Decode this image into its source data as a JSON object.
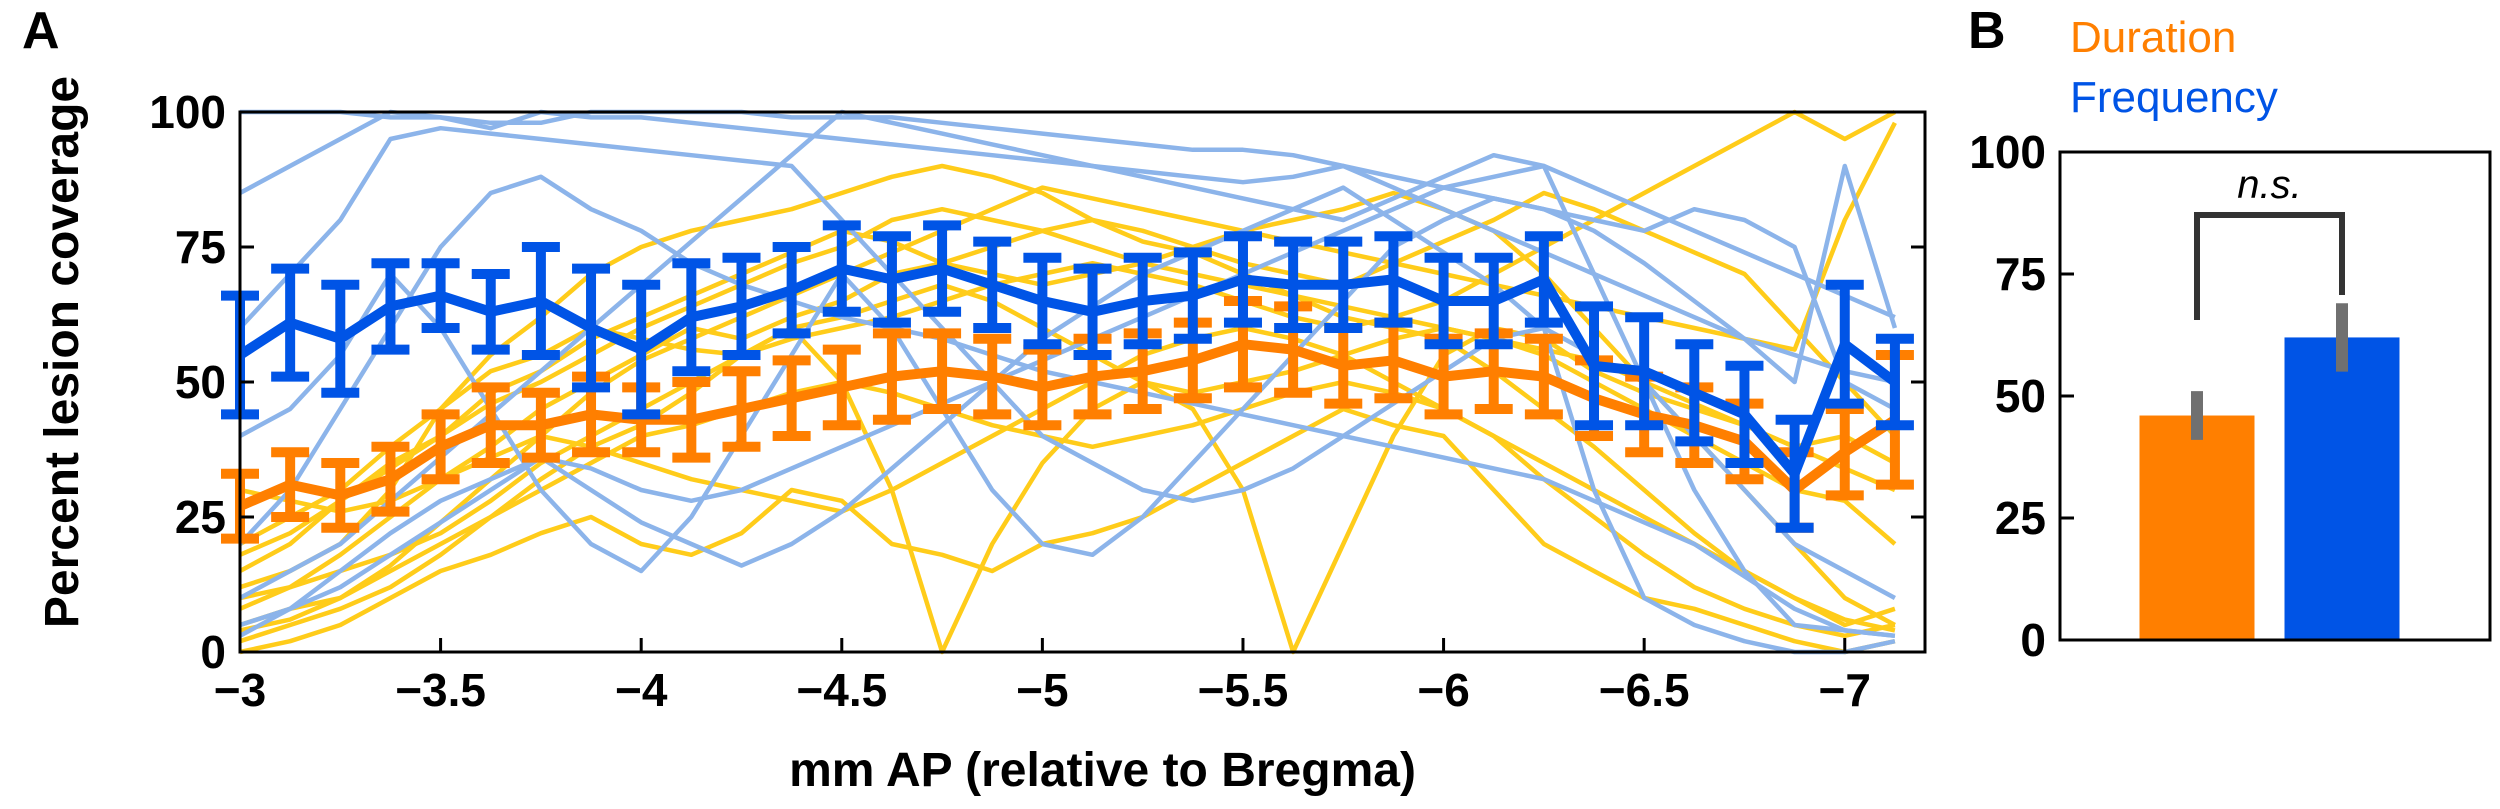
{
  "panels": {
    "a_label": "A",
    "b_label": "B"
  },
  "colors": {
    "duration_mean": "#ff7f00",
    "frequency_mean": "#0054e6",
    "duration_individual": "#ffcc1a",
    "frequency_individual": "#8cb4ea",
    "sem_bar_b": "#707070"
  },
  "chart_data": [
    {
      "type": "line",
      "panel": "A",
      "xlabel": "mm AP (relative to Bregma)",
      "ylabel": "Percent lesion coverage",
      "xlim": [
        -3,
        -7.2
      ],
      "ylim": [
        0,
        100
      ],
      "xticks": [
        -3,
        -3.5,
        -4,
        -4.5,
        -5,
        -5.5,
        -6,
        -6.5,
        -7
      ],
      "xtick_labels": [
        "−3",
        "−3.5",
        "−4",
        "−4.5",
        "−5",
        "−5.5",
        "−6",
        "−6.5",
        "−7"
      ],
      "yticks": [
        0,
        25,
        50,
        75,
        100
      ],
      "ytick_labels": [
        "0",
        "25",
        "50",
        "75",
        "100"
      ],
      "x": [
        -3.0,
        -3.125,
        -3.25,
        -3.375,
        -3.5,
        -3.625,
        -3.75,
        -3.875,
        -4.0,
        -4.125,
        -4.25,
        -4.375,
        -4.5,
        -4.625,
        -4.75,
        -4.875,
        -5.0,
        -5.125,
        -5.25,
        -5.375,
        -5.5,
        -5.625,
        -5.75,
        -5.875,
        -6.0,
        -6.125,
        -6.25,
        -6.375,
        -6.5,
        -6.625,
        -6.75,
        -6.875,
        -7.0,
        -7.125
      ],
      "series": [
        {
          "name": "Duration mean",
          "group": "Duration",
          "values": [
            27,
            31,
            29,
            32,
            38,
            42,
            42,
            44,
            43,
            43,
            45,
            47,
            49,
            51,
            52,
            51,
            49,
            51,
            52,
            54,
            57,
            56,
            53,
            54,
            51,
            52,
            51,
            47,
            44,
            42,
            39,
            30,
            37,
            43
          ],
          "sem": [
            6,
            6,
            6,
            6,
            6,
            7,
            6,
            7,
            6,
            7,
            7,
            7,
            7,
            8,
            7,
            7,
            7,
            7,
            7,
            7,
            8,
            8,
            7,
            7,
            7,
            7,
            7,
            7,
            7,
            7,
            7,
            7,
            8,
            12
          ]
        },
        {
          "name": "Frequency mean",
          "group": "Frequency",
          "values": [
            55,
            61,
            58,
            64,
            66,
            63,
            65,
            60,
            56,
            62,
            64,
            67,
            71,
            69,
            71,
            68,
            65,
            63,
            65,
            66,
            69,
            68,
            68,
            69,
            65,
            65,
            69,
            53,
            52,
            48,
            44,
            33,
            57,
            50
          ],
          "sem": [
            11,
            10,
            10,
            8,
            6,
            7,
            10,
            11,
            12,
            10,
            9,
            8,
            8,
            8,
            8,
            8,
            8,
            8,
            8,
            8,
            8,
            8,
            8,
            8,
            8,
            8,
            8,
            11,
            10,
            9,
            9,
            10,
            11,
            8
          ]
        },
        {
          "name": "Duration animal 1",
          "group": "Duration individual",
          "values": [
            0,
            2,
            5,
            10,
            15,
            18,
            22,
            25,
            20,
            18,
            22,
            30,
            28,
            20,
            18,
            15,
            20,
            22,
            25,
            30,
            35,
            40,
            45,
            42,
            40,
            30,
            20,
            15,
            10,
            8,
            5,
            2,
            0,
            2
          ]
        },
        {
          "name": "Duration animal 2",
          "group": "Duration individual",
          "values": [
            8,
            12,
            18,
            25,
            32,
            38,
            45,
            50,
            55,
            60,
            58,
            62,
            65,
            70,
            72,
            75,
            78,
            80,
            76,
            74,
            70,
            66,
            62,
            60,
            58,
            52,
            45,
            38,
            30,
            22,
            15,
            10,
            5,
            8
          ]
        },
        {
          "name": "Duration animal 3",
          "group": "Duration individual",
          "values": [
            15,
            20,
            28,
            35,
            40,
            48,
            52,
            58,
            62,
            66,
            70,
            74,
            78,
            76,
            72,
            70,
            68,
            70,
            72,
            75,
            78,
            80,
            82,
            85,
            82,
            78,
            70,
            60,
            50,
            40,
            30,
            20,
            10,
            5
          ]
        },
        {
          "name": "Duration animal 4",
          "group": "Duration individual",
          "values": [
            5,
            8,
            10,
            15,
            20,
            25,
            30,
            35,
            40,
            42,
            45,
            48,
            50,
            48,
            45,
            42,
            40,
            38,
            40,
            42,
            45,
            48,
            50,
            48,
            45,
            40,
            32,
            25,
            18,
            12,
            8,
            5,
            3,
            5
          ]
        },
        {
          "name": "Duration animal 5",
          "group": "Duration individual",
          "values": [
            20,
            25,
            30,
            38,
            45,
            52,
            55,
            60,
            58,
            56,
            55,
            58,
            60,
            62,
            65,
            68,
            70,
            72,
            70,
            68,
            65,
            62,
            60,
            62,
            65,
            70,
            75,
            80,
            85,
            90,
            95,
            100,
            95,
            100
          ]
        },
        {
          "name": "Duration animal 6",
          "group": "Duration individual",
          "values": [
            10,
            12,
            15,
            18,
            22,
            28,
            35,
            40,
            45,
            50,
            55,
            60,
            62,
            65,
            68,
            65,
            60,
            55,
            50,
            48,
            50,
            52,
            55,
            58,
            60,
            58,
            55,
            50,
            45,
            40,
            35,
            30,
            28,
            20
          ]
        },
        {
          "name": "Duration animal 7",
          "group": "Duration individual",
          "values": [
            2,
            5,
            8,
            12,
            18,
            25,
            32,
            38,
            42,
            48,
            55,
            60,
            50,
            30,
            0,
            20,
            35,
            45,
            50,
            45,
            30,
            0,
            20,
            40,
            55,
            60,
            58,
            52,
            48,
            45,
            42,
            38,
            40,
            35
          ]
        },
        {
          "name": "Duration animal 8",
          "group": "Duration individual",
          "values": [
            18,
            22,
            28,
            34,
            40,
            46,
            50,
            55,
            60,
            64,
            68,
            72,
            75,
            80,
            82,
            80,
            78,
            75,
            72,
            70,
            68,
            66,
            64,
            62,
            60,
            58,
            56,
            54,
            50,
            46,
            42,
            38,
            34,
            30
          ]
        },
        {
          "name": "Duration animal 9",
          "group": "Duration individual",
          "values": [
            12,
            15,
            20,
            30,
            45,
            55,
            62,
            70,
            75,
            78,
            80,
            82,
            85,
            88,
            90,
            88,
            85,
            80,
            78,
            75,
            72,
            70,
            68,
            72,
            76,
            80,
            85,
            82,
            78,
            74,
            70,
            60,
            50,
            40
          ]
        },
        {
          "name": "Duration animal 10",
          "group": "Duration individual",
          "values": [
            30,
            28,
            26,
            28,
            32,
            36,
            40,
            38,
            35,
            32,
            30,
            28,
            26,
            30,
            35,
            40,
            45,
            50,
            55,
            58,
            60,
            58,
            55,
            50,
            45,
            40,
            35,
            30,
            25,
            20,
            15,
            10,
            6,
            4
          ]
        },
        {
          "name": "Duration animal 11",
          "group": "Duration individual",
          "values": [
            4,
            6,
            10,
            16,
            24,
            32,
            40,
            48,
            54,
            58,
            62,
            66,
            70,
            74,
            78,
            82,
            86,
            84,
            82,
            80,
            78,
            76,
            74,
            72,
            70,
            68,
            66,
            64,
            62,
            60,
            58,
            56,
            80,
            98
          ]
        },
        {
          "name": "Frequency animal 1",
          "group": "Frequency individual",
          "values": [
            100,
            100,
            100,
            99,
            99,
            98,
            98,
            100,
            100,
            100,
            100,
            99,
            99,
            99,
            98,
            97,
            96,
            95,
            94,
            93,
            93,
            92,
            90,
            88,
            86,
            84,
            82,
            80,
            78,
            82,
            80,
            75,
            50,
            45
          ]
        },
        {
          "name": "Frequency animal 2",
          "group": "Frequency individual",
          "values": [
            85,
            90,
            95,
            100,
            99,
            97,
            100,
            99,
            99,
            98,
            97,
            96,
            95,
            94,
            93,
            92,
            91,
            90,
            89,
            88,
            87,
            88,
            90,
            86,
            82,
            78,
            74,
            70,
            66,
            62,
            58,
            55,
            52,
            50
          ]
        },
        {
          "name": "Frequency animal 3",
          "group": "Frequency individual",
          "values": [
            20,
            30,
            45,
            60,
            75,
            85,
            88,
            82,
            78,
            72,
            68,
            65,
            62,
            60,
            58,
            55,
            52,
            50,
            48,
            46,
            44,
            42,
            40,
            38,
            36,
            34,
            32,
            28,
            24,
            20,
            14,
            8,
            4,
            3
          ]
        },
        {
          "name": "Frequency animal 4",
          "group": "Frequency individual",
          "values": [
            3,
            8,
            15,
            22,
            28,
            32,
            36,
            34,
            30,
            28,
            30,
            34,
            38,
            42,
            46,
            50,
            54,
            58,
            62,
            66,
            70,
            74,
            78,
            82,
            86,
            88,
            90,
            70,
            50,
            40,
            30,
            20,
            15,
            10
          ]
        },
        {
          "name": "Frequency animal 5",
          "group": "Frequency individual",
          "values": [
            40,
            45,
            55,
            70,
            60,
            45,
            30,
            20,
            15,
            25,
            40,
            55,
            70,
            60,
            45,
            30,
            20,
            18,
            25,
            35,
            45,
            55,
            65,
            75,
            80,
            84,
            82,
            78,
            72,
            65,
            58,
            50,
            90,
            60
          ]
        },
        {
          "name": "Frequency animal 6",
          "group": "Frequency individual",
          "values": [
            60,
            70,
            80,
            95,
            97,
            96,
            95,
            94,
            93,
            92,
            91,
            90,
            80,
            70,
            60,
            50,
            40,
            35,
            30,
            28,
            30,
            34,
            40,
            46,
            52,
            58,
            60,
            55,
            50,
            30,
            15,
            5,
            4,
            3
          ]
        },
        {
          "name": "Frequency animal 7",
          "group": "Frequency individual",
          "values": [
            10,
            15,
            20,
            28,
            36,
            44,
            52,
            60,
            68,
            76,
            84,
            92,
            100,
            98,
            96,
            94,
            92,
            90,
            88,
            86,
            84,
            82,
            80,
            84,
            88,
            92,
            90,
            86,
            82,
            78,
            74,
            70,
            66,
            62
          ]
        },
        {
          "name": "Frequency animal 8",
          "group": "Frequency individual",
          "values": [
            5,
            8,
            12,
            18,
            24,
            30,
            36,
            30,
            24,
            20,
            16,
            20,
            26,
            34,
            42,
            50,
            58,
            64,
            70,
            74,
            78,
            82,
            86,
            80,
            74,
            68,
            60,
            30,
            10,
            5,
            2,
            0,
            0,
            2
          ]
        }
      ]
    },
    {
      "type": "bar",
      "panel": "B",
      "categories": [
        "Duration",
        "Frequency"
      ],
      "values": [
        46,
        62
      ],
      "sem": [
        5,
        7
      ],
      "ylim": [
        0,
        100
      ],
      "yticks": [
        0,
        25,
        50,
        75,
        100
      ],
      "ytick_labels": [
        "0",
        "25",
        "50",
        "75",
        "100"
      ],
      "legend": [
        {
          "label": "Duration",
          "color": "#ff7f00"
        },
        {
          "label": "Frequency",
          "color": "#0054e6"
        }
      ],
      "significance_label": "n.s."
    }
  ]
}
